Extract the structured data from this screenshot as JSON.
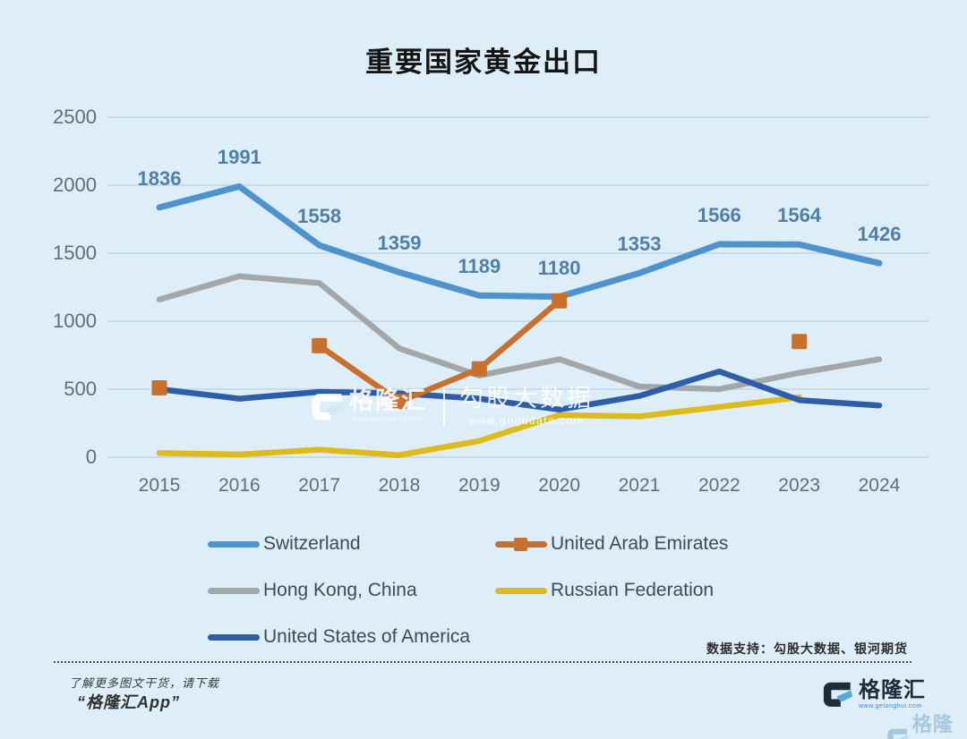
{
  "title": "重要国家黄金出口",
  "colors": {
    "background": "#ddeef9",
    "grid": "#c2d5e0",
    "axis_text": "#5d6f7b",
    "data_label": "#4f7fa6",
    "legend_text": "#3f4b55",
    "logo_navy": "#1d2b3a",
    "logo_blue": "#56a8dc"
  },
  "chart_data": {
    "type": "line",
    "title": "重要国家黄金出口",
    "x": [
      2015,
      2016,
      2017,
      2018,
      2019,
      2020,
      2021,
      2022,
      2023,
      2024
    ],
    "xlabel": "",
    "ylabel": "",
    "ylim": [
      0,
      2500
    ],
    "yticks": [
      0,
      500,
      1000,
      1500,
      2000,
      2500
    ],
    "grid": true,
    "legend_position": "bottom",
    "series": [
      {
        "name": "Switzerland",
        "color": "#4f93cc",
        "marker": "none",
        "show_labels": true,
        "values": [
          1836,
          1991,
          1558,
          1359,
          1189,
          1180,
          1353,
          1566,
          1564,
          1426
        ]
      },
      {
        "name": "United Arab Emirates",
        "color": "#c8702e",
        "marker": "square",
        "show_labels": false,
        "values": [
          510,
          null,
          820,
          410,
          650,
          1150,
          null,
          null,
          850,
          null
        ]
      },
      {
        "name": "Hong Kong, China",
        "color": "#a2a7a9",
        "marker": "none",
        "show_labels": false,
        "values": [
          1160,
          1330,
          1280,
          800,
          600,
          720,
          520,
          500,
          620,
          720
        ]
      },
      {
        "name": "Russian Federation",
        "color": "#ddbb1c",
        "marker": "none",
        "show_labels": false,
        "values": [
          30,
          20,
          55,
          15,
          120,
          310,
          300,
          370,
          440,
          null
        ]
      },
      {
        "name": "United States of America",
        "color": "#2f5ea8",
        "marker": "none",
        "show_labels": false,
        "values": [
          500,
          430,
          480,
          470,
          430,
          350,
          450,
          630,
          420,
          380
        ]
      }
    ]
  },
  "watermark": {
    "glh_name": "格隆汇",
    "glh_url": "www.gelonghui.com",
    "ggd_name": "勾股大数据",
    "ggd_url": "www.gogudata.com"
  },
  "footer": {
    "data_support": "数据支持：勾股大数据、银河期货",
    "promo_line1": "了解更多图文干货，请下载",
    "promo_line2": "“格隆汇App”",
    "logo_text": "格隆汇",
    "logo_url": "www.gelonghui.com",
    "corner_logo_text": "格隆汇"
  }
}
